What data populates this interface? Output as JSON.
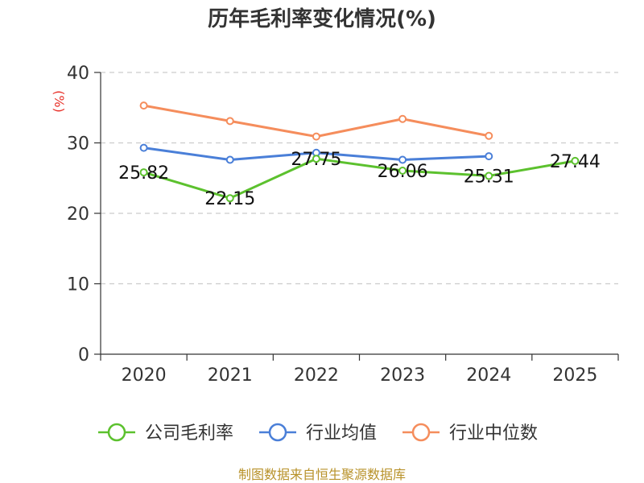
{
  "chart_data": {
    "type": "line",
    "title": "历年毛利率变化情况(%)",
    "y_unit": "(%)",
    "categories": [
      "2020",
      "2021",
      "2022",
      "2023",
      "2024",
      "2025"
    ],
    "ylim": [
      0,
      40
    ],
    "yticks": [
      "0",
      "10",
      "20",
      "30",
      "40"
    ],
    "grid": true,
    "legend_position": "bottom",
    "series": [
      {
        "name": "公司毛利率",
        "color": "#5cc12e",
        "values": [
          25.82,
          22.15,
          27.75,
          26.06,
          25.31,
          27.44
        ],
        "labels": [
          "25.82",
          "22.15",
          "27.75",
          "26.06",
          "25.31",
          "27.44"
        ]
      },
      {
        "name": "行业均值",
        "color": "#4a7fd8",
        "values": [
          29.3,
          27.6,
          28.6,
          27.6,
          28.1,
          null
        ]
      },
      {
        "name": "行业中位数",
        "color": "#f58d5c",
        "values": [
          35.3,
          33.1,
          30.9,
          33.4,
          31.0,
          null
        ]
      }
    ]
  },
  "source": "制图数据来自恒生聚源数据库"
}
